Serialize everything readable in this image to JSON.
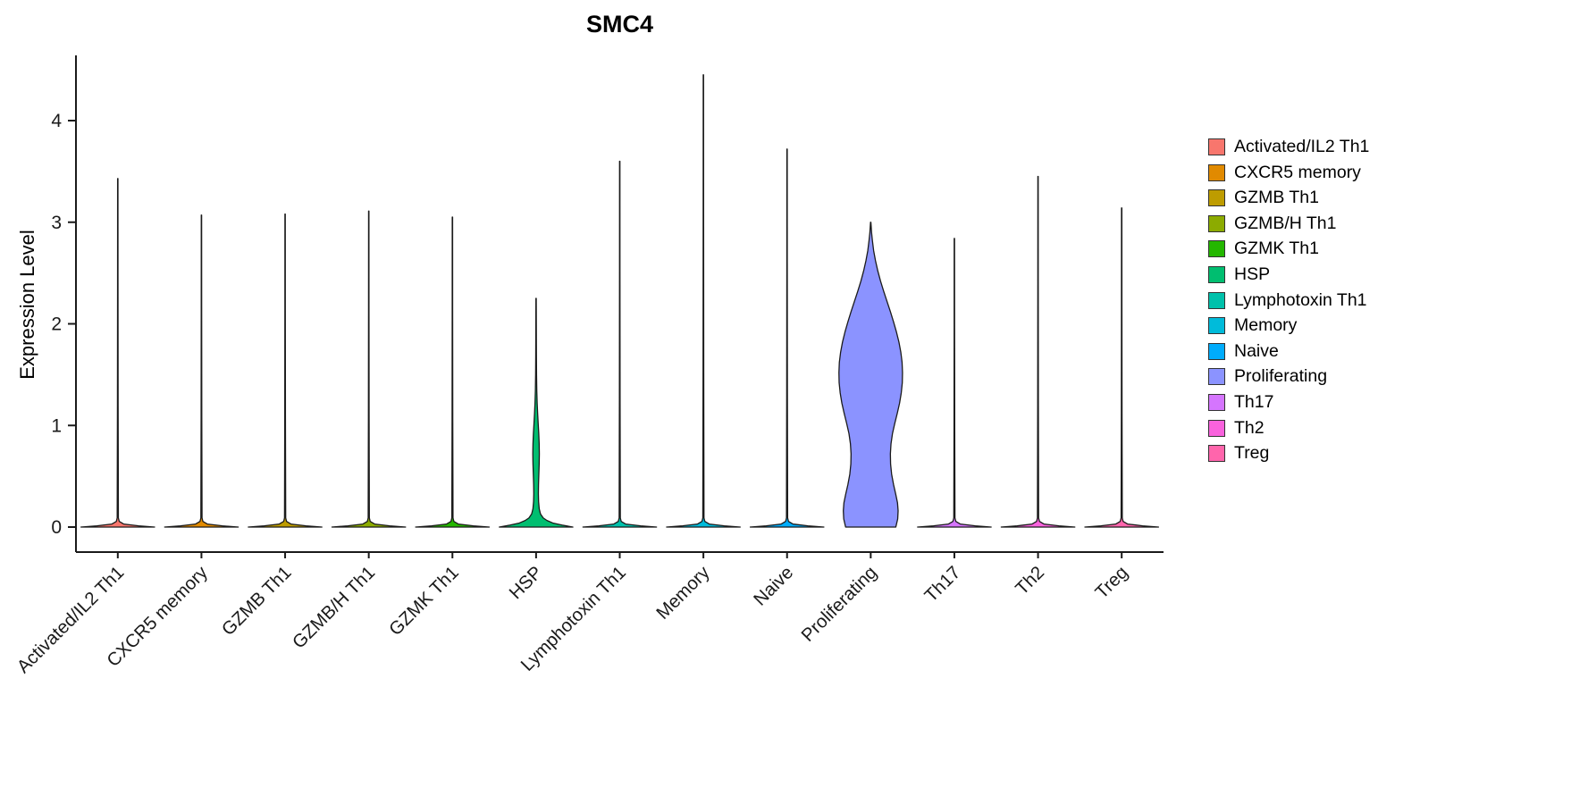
{
  "chart_data": {
    "type": "violin",
    "title": "SMC4",
    "ylabel": "Expression Level",
    "xlabel": "",
    "ylim": [
      -0.25,
      4.65
    ],
    "yticks": [
      0,
      1,
      2,
      3,
      4
    ],
    "grid": false,
    "legend_position": "right",
    "categories": [
      "Activated/IL2 Th1",
      "CXCR5 memory",
      "GZMB Th1",
      "GZMB/H Th1",
      "GZMK Th1",
      "HSP",
      "Lymphotoxin Th1",
      "Memory",
      "Naive",
      "Proliferating",
      "Th17",
      "Th2",
      "Treg"
    ],
    "series": [
      {
        "name": "Activated/IL2 Th1",
        "color": "#F8766D",
        "max": 3.43,
        "profile": "spike"
      },
      {
        "name": "CXCR5 memory",
        "color": "#E18A00",
        "max": 3.07,
        "profile": "spike"
      },
      {
        "name": "GZMB Th1",
        "color": "#BE9C00",
        "max": 3.08,
        "profile": "spike"
      },
      {
        "name": "GZMB/H Th1",
        "color": "#8CAB00",
        "max": 3.11,
        "profile": "spike"
      },
      {
        "name": "GZMK Th1",
        "color": "#24B700",
        "max": 3.05,
        "profile": "spike"
      },
      {
        "name": "HSP",
        "color": "#00BE70",
        "max": 2.25,
        "profile": [
          [
            0,
            0.88
          ],
          [
            0.02,
            0.62
          ],
          [
            0.04,
            0.4
          ],
          [
            0.065,
            0.26
          ],
          [
            0.09,
            0.17
          ],
          [
            0.13,
            0.105
          ],
          [
            0.18,
            0.075
          ],
          [
            0.25,
            0.06
          ],
          [
            0.33,
            0.055
          ],
          [
            0.42,
            0.058
          ],
          [
            0.52,
            0.066
          ],
          [
            0.62,
            0.074
          ],
          [
            0.72,
            0.078
          ],
          [
            0.82,
            0.074
          ],
          [
            0.92,
            0.064
          ],
          [
            1.02,
            0.05
          ],
          [
            1.12,
            0.037
          ],
          [
            1.22,
            0.026
          ],
          [
            1.34,
            0.017
          ],
          [
            1.5,
            0.011
          ],
          [
            1.7,
            0.008
          ],
          [
            1.95,
            0.006
          ],
          [
            2.25,
            0.004
          ]
        ]
      },
      {
        "name": "Lymphotoxin Th1",
        "color": "#00C1AB",
        "max": 3.6,
        "profile": "spike"
      },
      {
        "name": "Memory",
        "color": "#00BBDA",
        "max": 4.45,
        "profile": "spike"
      },
      {
        "name": "Naive",
        "color": "#00ACFC",
        "max": 3.72,
        "profile": "spike"
      },
      {
        "name": "Proliferating",
        "color": "#8B93FF",
        "max": 3.0,
        "profile": [
          [
            0,
            0.6
          ],
          [
            0.08,
            0.645
          ],
          [
            0.16,
            0.655
          ],
          [
            0.24,
            0.64
          ],
          [
            0.32,
            0.6
          ],
          [
            0.42,
            0.545
          ],
          [
            0.52,
            0.5
          ],
          [
            0.62,
            0.475
          ],
          [
            0.72,
            0.47
          ],
          [
            0.82,
            0.485
          ],
          [
            0.92,
            0.52
          ],
          [
            1.02,
            0.575
          ],
          [
            1.12,
            0.635
          ],
          [
            1.22,
            0.69
          ],
          [
            1.32,
            0.73
          ],
          [
            1.42,
            0.755
          ],
          [
            1.52,
            0.76
          ],
          [
            1.62,
            0.75
          ],
          [
            1.72,
            0.72
          ],
          [
            1.82,
            0.675
          ],
          [
            1.92,
            0.615
          ],
          [
            2.02,
            0.545
          ],
          [
            2.12,
            0.47
          ],
          [
            2.22,
            0.39
          ],
          [
            2.32,
            0.31
          ],
          [
            2.42,
            0.235
          ],
          [
            2.52,
            0.17
          ],
          [
            2.62,
            0.115
          ],
          [
            2.72,
            0.07
          ],
          [
            2.82,
            0.04
          ],
          [
            2.9,
            0.02
          ],
          [
            2.97,
            0.009
          ],
          [
            3.0,
            0.004
          ]
        ]
      },
      {
        "name": "Th17",
        "color": "#D575FE",
        "max": 2.84,
        "profile": "spike"
      },
      {
        "name": "Th2",
        "color": "#F962DD",
        "max": 3.45,
        "profile": "spike"
      },
      {
        "name": "Treg",
        "color": "#FF65AC",
        "max": 3.14,
        "profile": "spike"
      }
    ]
  }
}
